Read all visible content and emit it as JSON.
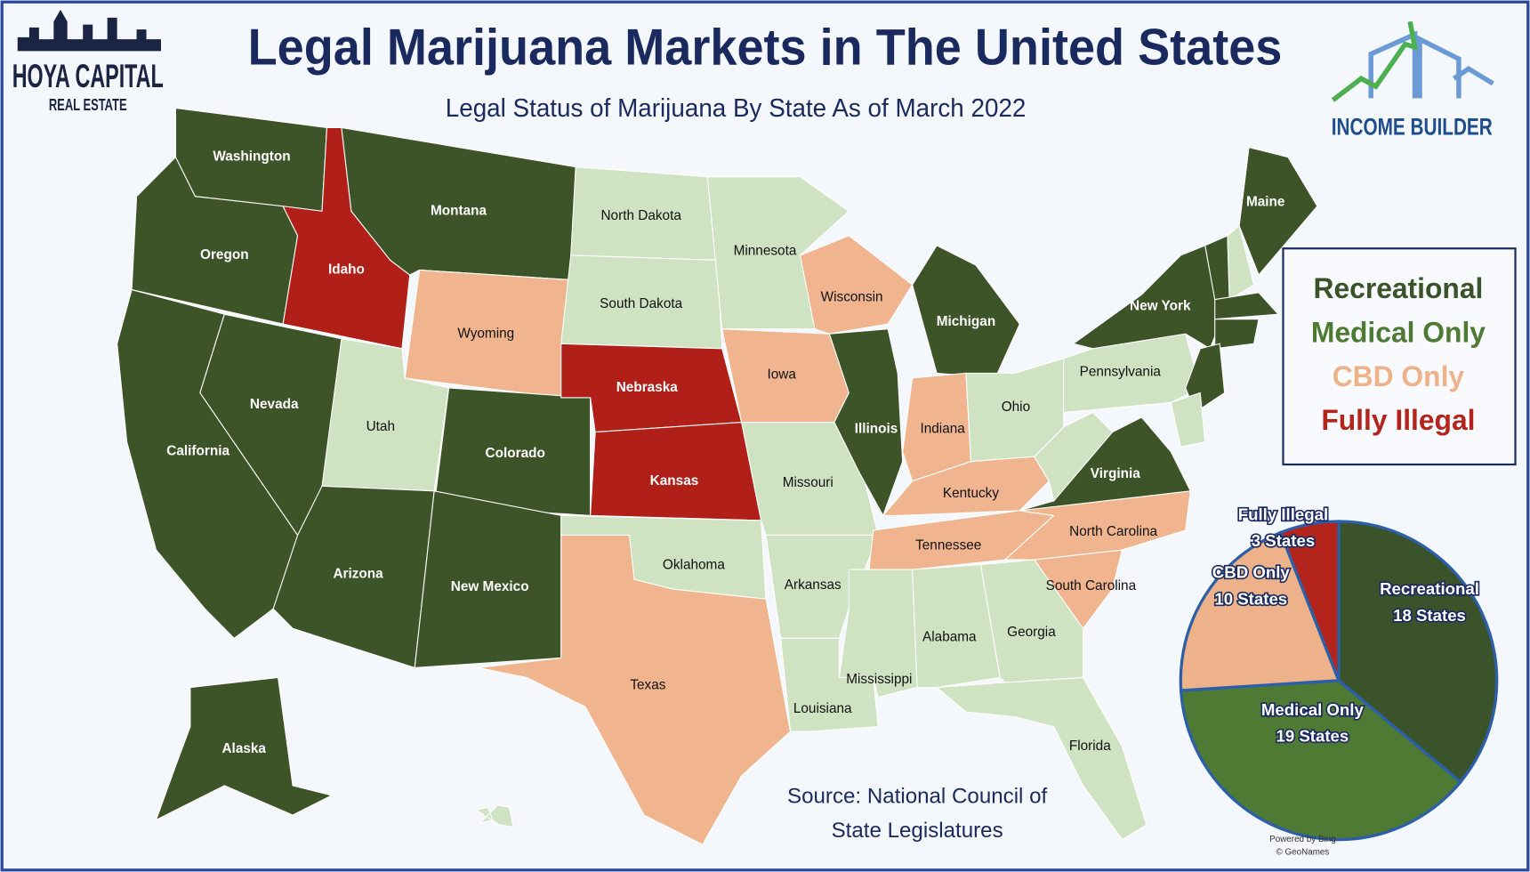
{
  "header": {
    "title": "Legal Marijuana Markets in The United States",
    "subtitle": "Legal Status of Marijuana By State As of March 2022",
    "logo_left_top": "HOYA CAPITAL",
    "logo_left_bottom": "REAL ESTATE",
    "logo_right": "INCOME BUILDER"
  },
  "footer": {
    "source_line1": "Source: National Council of",
    "source_line2": "State Legislatures",
    "powered": "Powered by Bing",
    "copyright": "© GeoNames"
  },
  "map": {
    "fill_colors": [
      "#3d5429",
      "#cfe3c2",
      "#f0b48e",
      "#b01f18"
    ],
    "states": [
      {
        "name": "Washington",
        "status": "Recreational"
      },
      {
        "name": "Oregon",
        "status": "Recreational"
      },
      {
        "name": "California",
        "status": "Recreational"
      },
      {
        "name": "Nevada",
        "status": "Recreational"
      },
      {
        "name": "Idaho",
        "status": "Fully Illegal"
      },
      {
        "name": "Montana",
        "status": "Recreational"
      },
      {
        "name": "Wyoming",
        "status": "CBD Only"
      },
      {
        "name": "Utah",
        "status": "Medical Only"
      },
      {
        "name": "Colorado",
        "status": "Recreational"
      },
      {
        "name": "Arizona",
        "status": "Recreational"
      },
      {
        "name": "New Mexico",
        "status": "Recreational"
      },
      {
        "name": "North Dakota",
        "status": "Medical Only"
      },
      {
        "name": "South Dakota",
        "status": "Medical Only"
      },
      {
        "name": "Nebraska",
        "status": "Fully Illegal"
      },
      {
        "name": "Kansas",
        "status": "Fully Illegal"
      },
      {
        "name": "Oklahoma",
        "status": "Medical Only"
      },
      {
        "name": "Texas",
        "status": "CBD Only"
      },
      {
        "name": "Minnesota",
        "status": "Medical Only"
      },
      {
        "name": "Iowa",
        "status": "CBD Only"
      },
      {
        "name": "Missouri",
        "status": "Medical Only"
      },
      {
        "name": "Arkansas",
        "status": "Medical Only"
      },
      {
        "name": "Louisiana",
        "status": "Medical Only"
      },
      {
        "name": "Wisconsin",
        "status": "CBD Only"
      },
      {
        "name": "Illinois",
        "status": "Recreational"
      },
      {
        "name": "Michigan",
        "status": "Recreational"
      },
      {
        "name": "Indiana",
        "status": "CBD Only"
      },
      {
        "name": "Ohio",
        "status": "Medical Only"
      },
      {
        "name": "Kentucky",
        "status": "CBD Only"
      },
      {
        "name": "Tennessee",
        "status": "CBD Only"
      },
      {
        "name": "Mississippi",
        "status": "Medical Only"
      },
      {
        "name": "Alabama",
        "status": "Medical Only"
      },
      {
        "name": "Georgia",
        "status": "Medical Only"
      },
      {
        "name": "Florida",
        "status": "Medical Only"
      },
      {
        "name": "South Carolina",
        "status": "CBD Only"
      },
      {
        "name": "North Carolina",
        "status": "CBD Only"
      },
      {
        "name": "Virginia",
        "status": "Recreational"
      },
      {
        "name": null,
        "status": "Medical Only"
      },
      {
        "name": "Pennsylvania",
        "status": "Medical Only"
      },
      {
        "name": "New York",
        "status": "Recreational"
      },
      {
        "name": null,
        "status": "Recreational"
      },
      {
        "name": null,
        "status": "Medical Only"
      },
      {
        "name": "Maine",
        "status": "Recreational"
      },
      {
        "name": null,
        "status": "Recreational"
      },
      {
        "name": null,
        "status": "Recreational"
      },
      {
        "name": null,
        "status": "Recreational"
      },
      {
        "name": null,
        "status": "Medical Only"
      },
      {
        "name": "Alaska",
        "status": "Recreational"
      },
      {
        "name": null,
        "status": "Medical Only"
      }
    ]
  },
  "chart_data": {
    "type": "pie",
    "categories": [
      "Recreational",
      "Medical Only",
      "CBD Only",
      "Fully Illegal"
    ],
    "values": [
      18,
      19,
      10,
      3
    ],
    "value_labels": [
      "18 States",
      "19 States",
      "10 States",
      "3 States"
    ],
    "colors": [
      "#3b532a",
      "#4e7a34",
      "#eeb28a",
      "#b3241c"
    ]
  }
}
